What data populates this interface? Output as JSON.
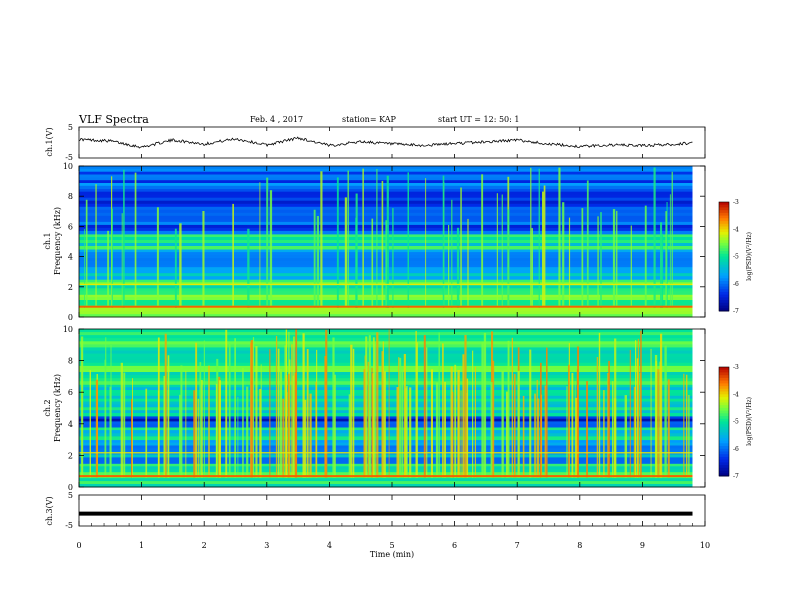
{
  "header": {
    "title": "VLF Spectra",
    "date": "Feb. 4 , 2017",
    "station": "station= KAP",
    "start_ut": "start UT =   12: 50: 1"
  },
  "chart_data": [
    {
      "type": "line",
      "name": "ch1-waveform",
      "ylabel": "ch.1(V)",
      "ylim": [
        -5,
        5
      ],
      "yticks": [
        "5",
        "-5"
      ],
      "xlim": [
        0,
        10
      ],
      "note": "noisy oscillating voltage trace, roughly -2 to +2 V around 0",
      "x": [
        0,
        0.5,
        1,
        1.5,
        2,
        2.5,
        3,
        3.5,
        4,
        4.5,
        5,
        5.5,
        6,
        6.5,
        7,
        7.5,
        8,
        8.5,
        9,
        9.5,
        9.8
      ],
      "y": [
        1.0,
        0.5,
        -1.5,
        0.8,
        -0.5,
        1.2,
        -0.8,
        1.5,
        -1.0,
        0.3,
        -0.5,
        -1.0,
        -0.3,
        0.2,
        0.8,
        -0.5,
        -1.3,
        -0.8,
        -1.0,
        -0.6,
        -0.1
      ]
    },
    {
      "type": "heatmap",
      "name": "ch1-spectrogram",
      "ylabel": "ch.1\nFrequency (kHz)",
      "ylim": [
        0,
        10
      ],
      "yticks": [
        "0",
        "2",
        "4",
        "6",
        "8",
        "10"
      ],
      "xlim": [
        0,
        10
      ],
      "colorbar": {
        "label": "log(PSD)(V²/Hz)",
        "range": [
          -7,
          -3
        ],
        "ticks": [
          "-3",
          "-4",
          "-5",
          "-6",
          "-7"
        ]
      },
      "bands_khz": [
        {
          "from": 0,
          "to": 1.5,
          "level": -4.6
        },
        {
          "from": 1.5,
          "to": 2.5,
          "level": -4.8
        },
        {
          "from": 2.5,
          "to": 3.5,
          "level": -5.6
        },
        {
          "from": 3.5,
          "to": 4.5,
          "level": -6.0
        },
        {
          "from": 4.5,
          "to": 5.5,
          "level": -5.1
        },
        {
          "from": 5.5,
          "to": 6.5,
          "level": -6.2
        },
        {
          "from": 6.5,
          "to": 8.5,
          "level": -6.4
        },
        {
          "from": 8.5,
          "to": 10,
          "level": -6.1
        }
      ]
    },
    {
      "type": "heatmap",
      "name": "ch2-spectrogram",
      "ylabel": "ch.2\nFrequency (kHz)",
      "ylim": [
        0,
        10
      ],
      "yticks": [
        "0",
        "2",
        "4",
        "6",
        "8",
        "10"
      ],
      "xlim": [
        0,
        10
      ],
      "colorbar": {
        "label": "log(PSD)(V²/Hz)",
        "range": [
          -7,
          -3
        ],
        "ticks": [
          "-3",
          "-4",
          "-5",
          "-6",
          "-7"
        ]
      },
      "bands_khz": [
        {
          "from": 0,
          "to": 1.5,
          "level": -5.0
        },
        {
          "from": 1.5,
          "to": 3.0,
          "level": -5.7
        },
        {
          "from": 3.0,
          "to": 3.8,
          "level": -5.2
        },
        {
          "from": 3.8,
          "to": 4.5,
          "level": -6.4
        },
        {
          "from": 4.5,
          "to": 6.5,
          "level": -5.2
        },
        {
          "from": 6.5,
          "to": 10,
          "level": -4.9
        }
      ]
    },
    {
      "type": "line",
      "name": "ch3-waveform",
      "ylabel": "ch.3(V)",
      "ylim": [
        -5,
        5
      ],
      "yticks": [
        "5",
        "-5"
      ],
      "xlim": [
        0,
        10
      ],
      "xlabel": "Time (min)",
      "xticks": [
        "0",
        "1",
        "2",
        "3",
        "4",
        "5",
        "6",
        "7",
        "8",
        "9",
        "10"
      ],
      "x": [
        0,
        9.8
      ],
      "y": [
        -1.0,
        -1.0
      ]
    }
  ]
}
